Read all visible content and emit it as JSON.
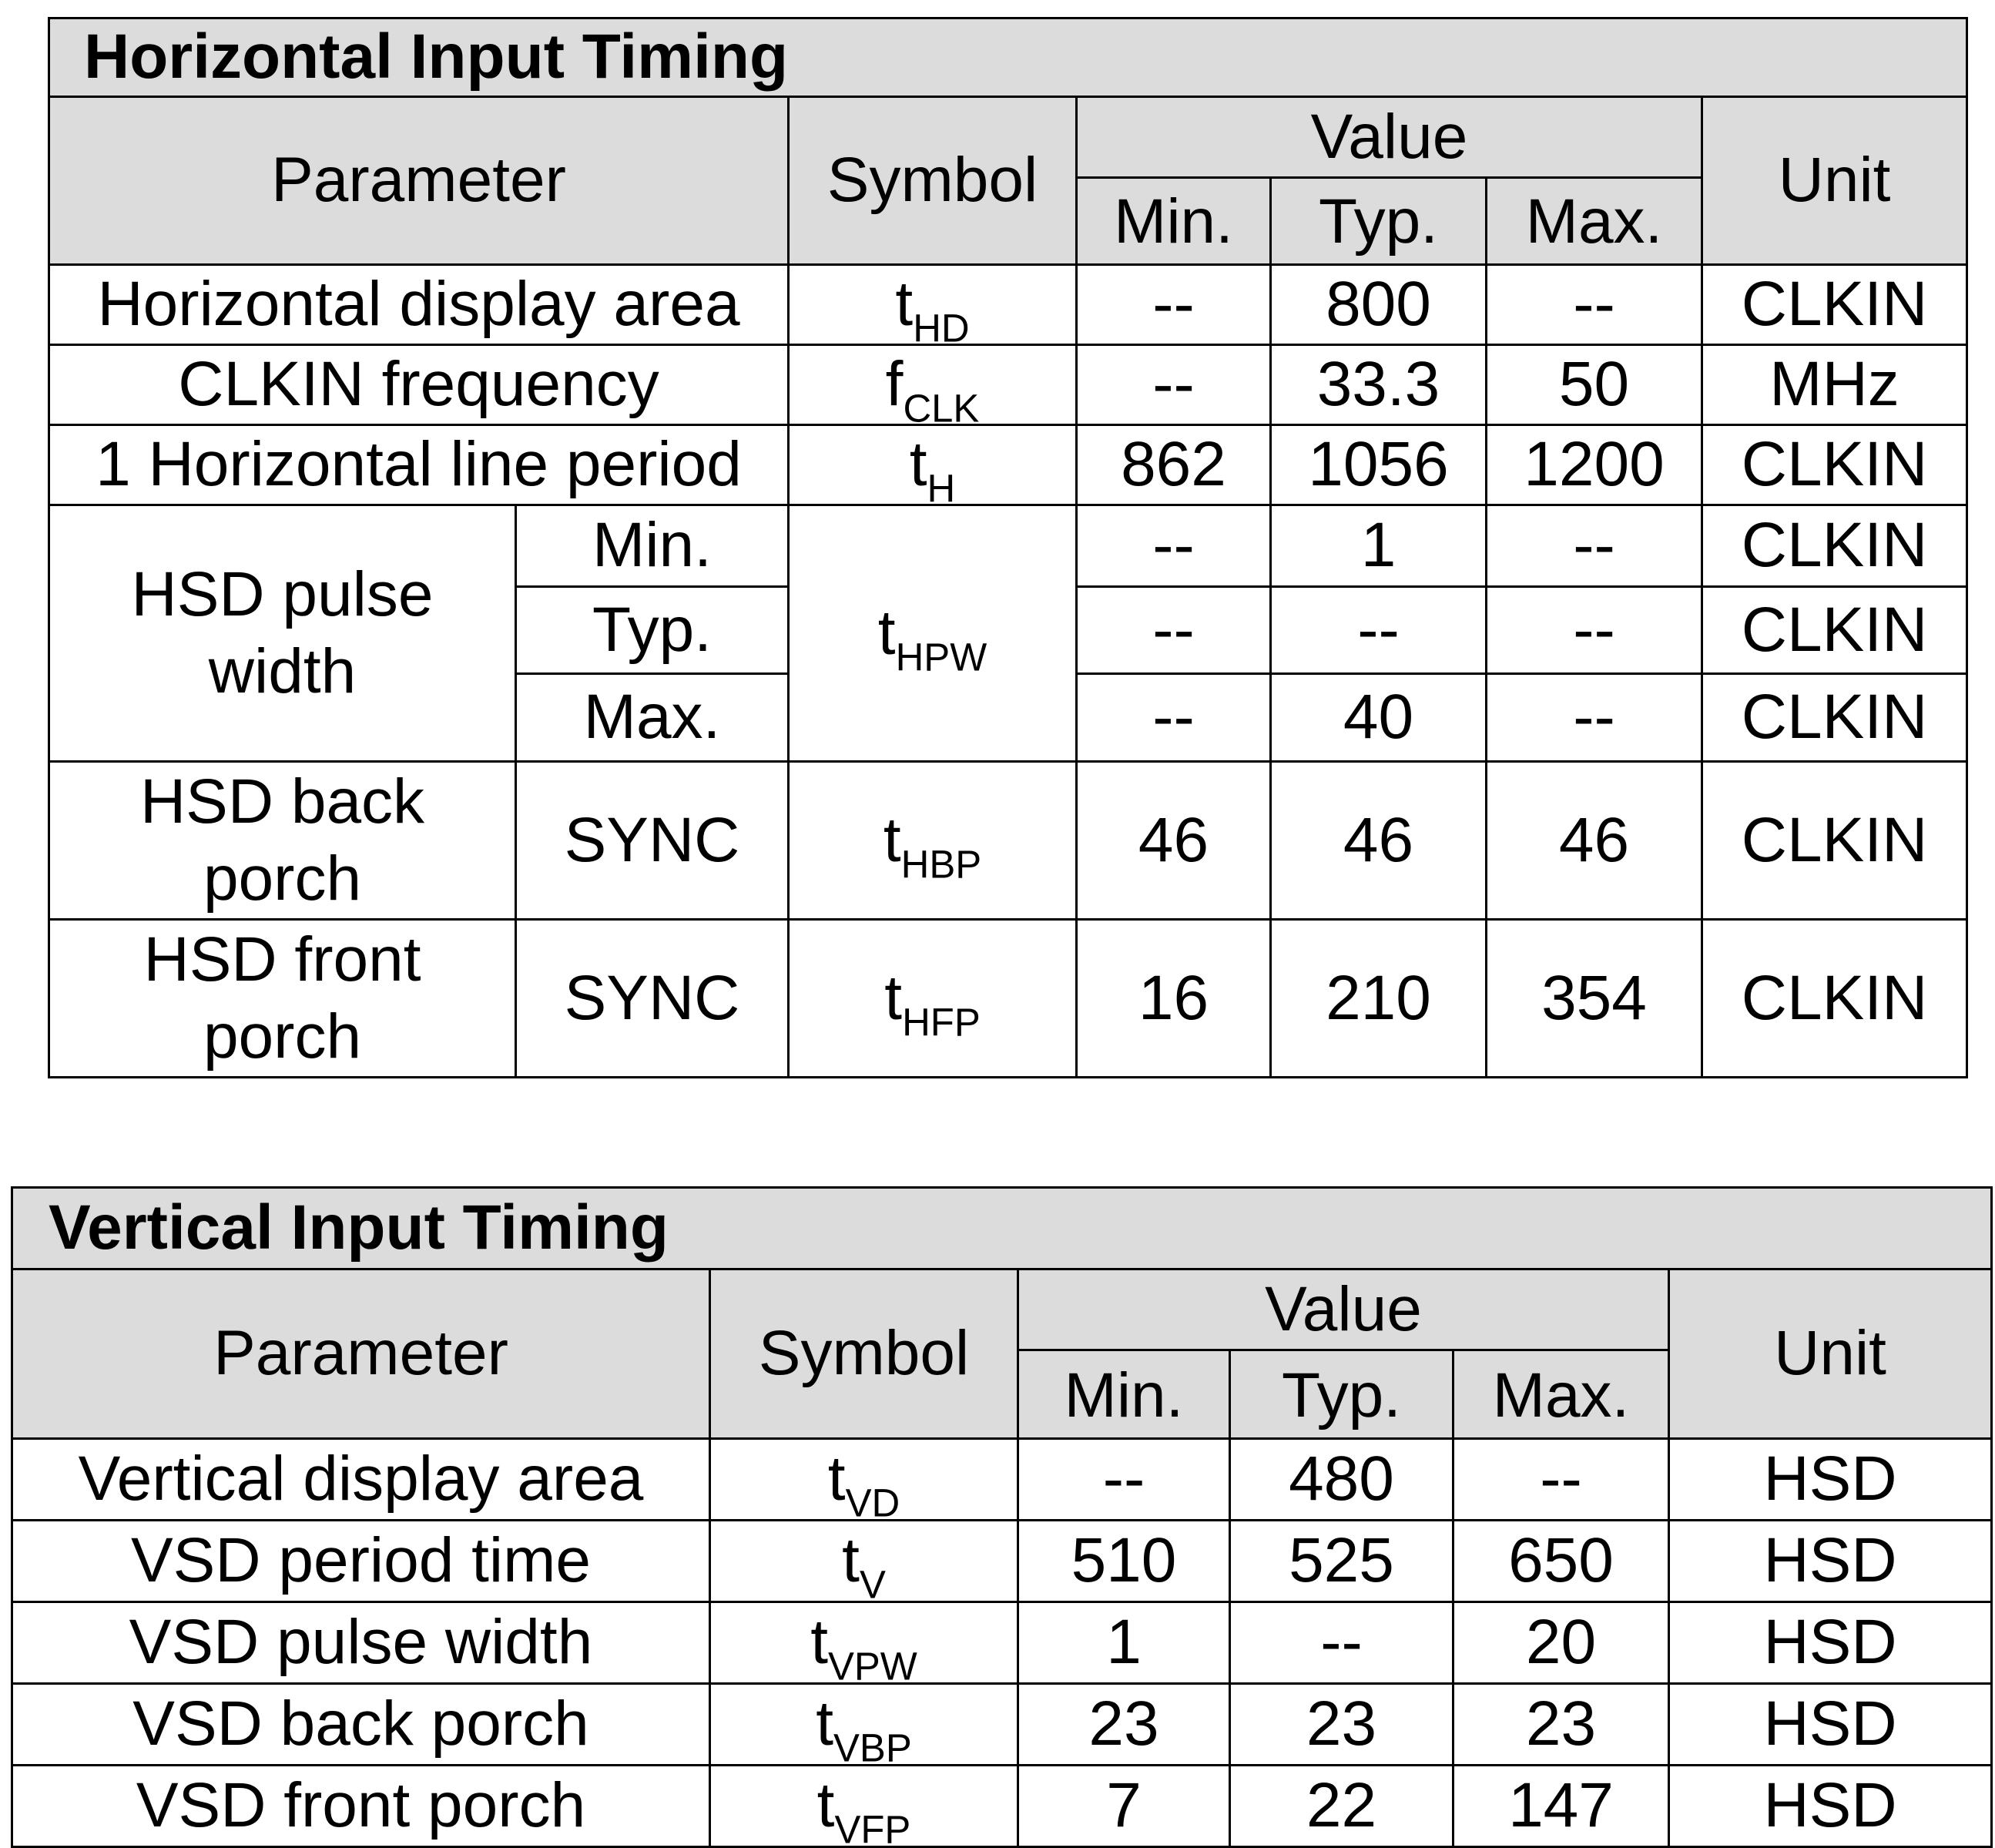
{
  "horizontal": {
    "title": "Horizontal Input Timing",
    "headers": {
      "parameter": "Parameter",
      "symbol": "Symbol",
      "value": "Value",
      "min": "Min.",
      "typ": "Typ.",
      "max": "Max.",
      "unit": "Unit"
    },
    "rows": [
      {
        "parameter": "Horizontal display area",
        "sym_base": "t",
        "sym_sub": "HD",
        "min": "--",
        "typ": "800",
        "max": "--",
        "unit": "CLKIN"
      },
      {
        "parameter": "CLKIN frequency",
        "sym_base": "f",
        "sym_sub": "CLK",
        "min": "--",
        "typ": "33.3",
        "max": "50",
        "unit": "MHz"
      },
      {
        "parameter": "1 Horizontal line period",
        "sym_base": "t",
        "sym_sub": "H",
        "min": "862",
        "typ": "1056",
        "max": "1200",
        "unit": "CLKIN"
      }
    ],
    "pulse": {
      "parameter_line1": "HSD pulse",
      "parameter_line2": "width",
      "sym_base": "t",
      "sym_sub": "HPW",
      "subrows": [
        {
          "label": "Min.",
          "min": "--",
          "typ": "1",
          "max": "--",
          "unit": "CLKIN"
        },
        {
          "label": "Typ.",
          "min": "--",
          "typ": "--",
          "max": "--",
          "unit": "CLKIN"
        },
        {
          "label": "Max.",
          "min": "--",
          "typ": "40",
          "max": "--",
          "unit": "CLKIN"
        }
      ]
    },
    "back_porch": {
      "line1": "HSD back",
      "line2": "porch",
      "cond": "SYNC",
      "sym_base": "t",
      "sym_sub": "HBP",
      "min": "46",
      "typ": "46",
      "max": "46",
      "unit": "CLKIN"
    },
    "front_porch": {
      "line1": "HSD front",
      "line2": "porch",
      "cond": "SYNC",
      "sym_base": "t",
      "sym_sub": "HFP",
      "min": "16",
      "typ": "210",
      "max": "354",
      "unit": "CLKIN"
    }
  },
  "vertical": {
    "title": "Vertical Input Timing",
    "headers": {
      "parameter": "Parameter",
      "symbol": "Symbol",
      "value": "Value",
      "min": "Min.",
      "typ": "Typ.",
      "max": "Max.",
      "unit": "Unit"
    },
    "rows": [
      {
        "parameter": "Vertical display area",
        "sym_base": "t",
        "sym_sub": "VD",
        "min": "--",
        "typ": "480",
        "max": "--",
        "unit": "HSD"
      },
      {
        "parameter": "VSD period time",
        "sym_base": "t",
        "sym_sub": "V",
        "min": "510",
        "typ": "525",
        "max": "650",
        "unit": "HSD"
      },
      {
        "parameter": "VSD pulse width",
        "sym_base": "t",
        "sym_sub": "VPW",
        "min": "1",
        "typ": "--",
        "max": "20",
        "unit": "HSD"
      },
      {
        "parameter": "VSD back porch",
        "sym_base": "t",
        "sym_sub": "VBP",
        "min": "23",
        "typ": "23",
        "max": "23",
        "unit": "HSD"
      },
      {
        "parameter": "VSD front porch",
        "sym_base": "t",
        "sym_sub": "VFP",
        "min": "7",
        "typ": "22",
        "max": "147",
        "unit": "HSD"
      }
    ]
  }
}
